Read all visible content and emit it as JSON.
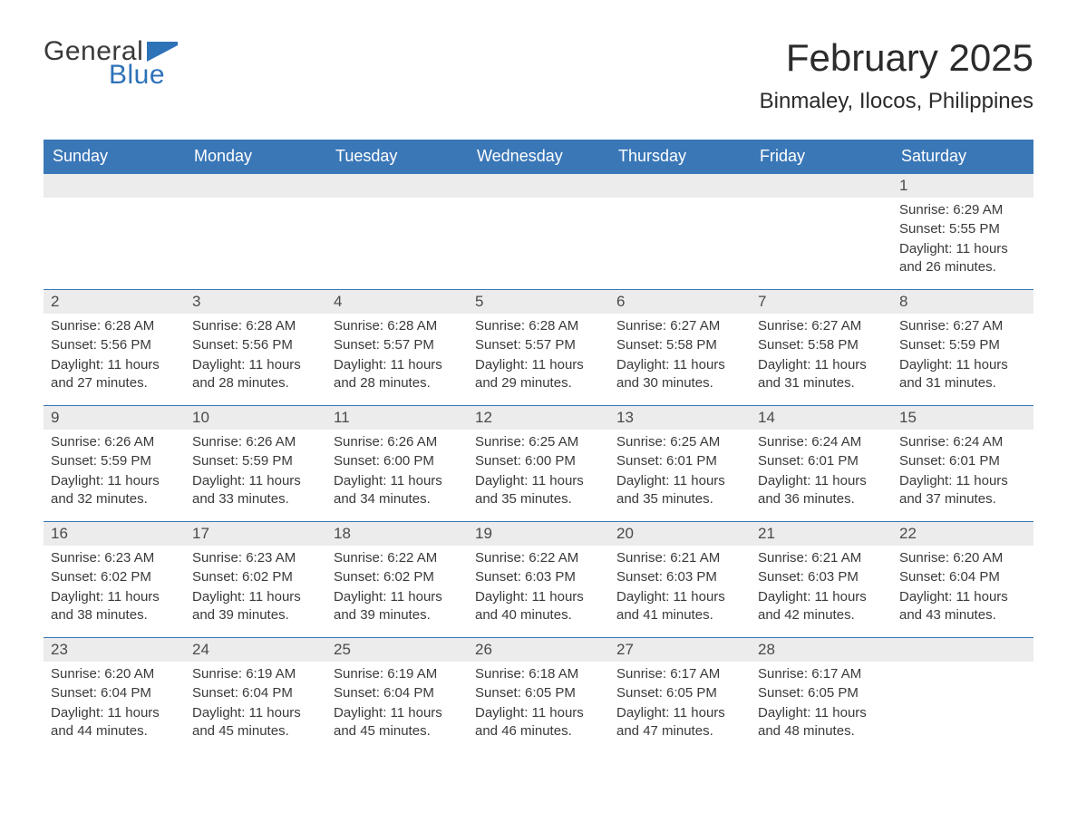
{
  "logo": {
    "general": "General",
    "blue": "Blue",
    "flag_color": "#2e72b8"
  },
  "title": {
    "month": "February 2025",
    "location": "Binmaley, Ilocos, Philippines"
  },
  "theme": {
    "header_bg": "#3a77b7",
    "header_text": "#ffffff",
    "daynum_bg": "#ececec",
    "row_divider": "#3a77b7",
    "text_color": "#3a3a3a",
    "logo_blue": "#2e72b8",
    "body_bg": "#ffffff"
  },
  "calendar": {
    "type": "table",
    "columns": [
      "Sunday",
      "Monday",
      "Tuesday",
      "Wednesday",
      "Thursday",
      "Friday",
      "Saturday"
    ],
    "first_weekday_index": 6,
    "num_days": 28,
    "days": {
      "1": {
        "sunrise": "6:29 AM",
        "sunset": "5:55 PM",
        "daylight": "11 hours and 26 minutes."
      },
      "2": {
        "sunrise": "6:28 AM",
        "sunset": "5:56 PM",
        "daylight": "11 hours and 27 minutes."
      },
      "3": {
        "sunrise": "6:28 AM",
        "sunset": "5:56 PM",
        "daylight": "11 hours and 28 minutes."
      },
      "4": {
        "sunrise": "6:28 AM",
        "sunset": "5:57 PM",
        "daylight": "11 hours and 28 minutes."
      },
      "5": {
        "sunrise": "6:28 AM",
        "sunset": "5:57 PM",
        "daylight": "11 hours and 29 minutes."
      },
      "6": {
        "sunrise": "6:27 AM",
        "sunset": "5:58 PM",
        "daylight": "11 hours and 30 minutes."
      },
      "7": {
        "sunrise": "6:27 AM",
        "sunset": "5:58 PM",
        "daylight": "11 hours and 31 minutes."
      },
      "8": {
        "sunrise": "6:27 AM",
        "sunset": "5:59 PM",
        "daylight": "11 hours and 31 minutes."
      },
      "9": {
        "sunrise": "6:26 AM",
        "sunset": "5:59 PM",
        "daylight": "11 hours and 32 minutes."
      },
      "10": {
        "sunrise": "6:26 AM",
        "sunset": "5:59 PM",
        "daylight": "11 hours and 33 minutes."
      },
      "11": {
        "sunrise": "6:26 AM",
        "sunset": "6:00 PM",
        "daylight": "11 hours and 34 minutes."
      },
      "12": {
        "sunrise": "6:25 AM",
        "sunset": "6:00 PM",
        "daylight": "11 hours and 35 minutes."
      },
      "13": {
        "sunrise": "6:25 AM",
        "sunset": "6:01 PM",
        "daylight": "11 hours and 35 minutes."
      },
      "14": {
        "sunrise": "6:24 AM",
        "sunset": "6:01 PM",
        "daylight": "11 hours and 36 minutes."
      },
      "15": {
        "sunrise": "6:24 AM",
        "sunset": "6:01 PM",
        "daylight": "11 hours and 37 minutes."
      },
      "16": {
        "sunrise": "6:23 AM",
        "sunset": "6:02 PM",
        "daylight": "11 hours and 38 minutes."
      },
      "17": {
        "sunrise": "6:23 AM",
        "sunset": "6:02 PM",
        "daylight": "11 hours and 39 minutes."
      },
      "18": {
        "sunrise": "6:22 AM",
        "sunset": "6:02 PM",
        "daylight": "11 hours and 39 minutes."
      },
      "19": {
        "sunrise": "6:22 AM",
        "sunset": "6:03 PM",
        "daylight": "11 hours and 40 minutes."
      },
      "20": {
        "sunrise": "6:21 AM",
        "sunset": "6:03 PM",
        "daylight": "11 hours and 41 minutes."
      },
      "21": {
        "sunrise": "6:21 AM",
        "sunset": "6:03 PM",
        "daylight": "11 hours and 42 minutes."
      },
      "22": {
        "sunrise": "6:20 AM",
        "sunset": "6:04 PM",
        "daylight": "11 hours and 43 minutes."
      },
      "23": {
        "sunrise": "6:20 AM",
        "sunset": "6:04 PM",
        "daylight": "11 hours and 44 minutes."
      },
      "24": {
        "sunrise": "6:19 AM",
        "sunset": "6:04 PM",
        "daylight": "11 hours and 45 minutes."
      },
      "25": {
        "sunrise": "6:19 AM",
        "sunset": "6:04 PM",
        "daylight": "11 hours and 45 minutes."
      },
      "26": {
        "sunrise": "6:18 AM",
        "sunset": "6:05 PM",
        "daylight": "11 hours and 46 minutes."
      },
      "27": {
        "sunrise": "6:17 AM",
        "sunset": "6:05 PM",
        "daylight": "11 hours and 47 minutes."
      },
      "28": {
        "sunrise": "6:17 AM",
        "sunset": "6:05 PM",
        "daylight": "11 hours and 48 minutes."
      }
    },
    "labels": {
      "sunrise": "Sunrise:",
      "sunset": "Sunset:",
      "daylight": "Daylight:"
    }
  }
}
